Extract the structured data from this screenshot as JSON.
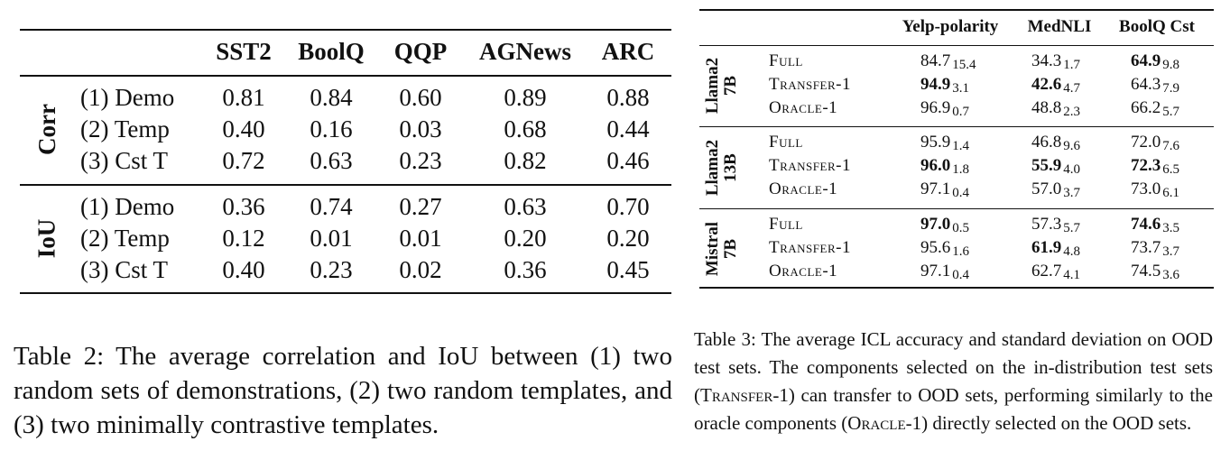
{
  "table2": {
    "headers": [
      "SST2",
      "BoolQ",
      "QQP",
      "AGNews",
      "ARC"
    ],
    "groups": [
      {
        "name": "Corr",
        "rows": [
          {
            "label": "(1) Demo",
            "values": [
              "0.81",
              "0.84",
              "0.60",
              "0.89",
              "0.88"
            ]
          },
          {
            "label": "(2) Temp",
            "values": [
              "0.40",
              "0.16",
              "0.03",
              "0.68",
              "0.44"
            ]
          },
          {
            "label": "(3) Cst T",
            "values": [
              "0.72",
              "0.63",
              "0.23",
              "0.82",
              "0.46"
            ]
          }
        ]
      },
      {
        "name": "IoU",
        "rows": [
          {
            "label": "(1) Demo",
            "values": [
              "0.36",
              "0.74",
              "0.27",
              "0.63",
              "0.70"
            ]
          },
          {
            "label": "(2) Temp",
            "values": [
              "0.12",
              "0.01",
              "0.01",
              "0.20",
              "0.20"
            ]
          },
          {
            "label": "(3) Cst T",
            "values": [
              "0.40",
              "0.23",
              "0.02",
              "0.36",
              "0.45"
            ]
          }
        ]
      }
    ],
    "caption": "Table 2: The average correlation and IoU between (1) two random sets of demonstrations, (2) two random templates, and (3) two minimally contrastive templates."
  },
  "table3": {
    "headers": [
      "Yelp-polarity",
      "MedNLI",
      "BoolQ Cst"
    ],
    "groups": [
      {
        "model": [
          "Llama2",
          "7B"
        ],
        "rows": [
          {
            "method": "Full",
            "cells": [
              {
                "v": "84.7",
                "s": "15.4",
                "bold": false
              },
              {
                "v": "34.3",
                "s": "1.7",
                "bold": false
              },
              {
                "v": "64.9",
                "s": "9.8",
                "bold": true
              }
            ]
          },
          {
            "method": "Transfer-1",
            "cells": [
              {
                "v": "94.9",
                "s": "3.1",
                "bold": true
              },
              {
                "v": "42.6",
                "s": "4.7",
                "bold": true
              },
              {
                "v": "64.3",
                "s": "7.9",
                "bold": false
              }
            ]
          },
          {
            "method": "Oracle-1",
            "cells": [
              {
                "v": "96.9",
                "s": "0.7",
                "bold": false
              },
              {
                "v": "48.8",
                "s": "2.3",
                "bold": false
              },
              {
                "v": "66.2",
                "s": "5.7",
                "bold": false
              }
            ]
          }
        ]
      },
      {
        "model": [
          "Llama2",
          "13B"
        ],
        "rows": [
          {
            "method": "Full",
            "cells": [
              {
                "v": "95.9",
                "s": "1.4",
                "bold": false
              },
              {
                "v": "46.8",
                "s": "9.6",
                "bold": false
              },
              {
                "v": "72.0",
                "s": "7.6",
                "bold": false
              }
            ]
          },
          {
            "method": "Transfer-1",
            "cells": [
              {
                "v": "96.0",
                "s": "1.8",
                "bold": true
              },
              {
                "v": "55.9",
                "s": "4.0",
                "bold": true
              },
              {
                "v": "72.3",
                "s": "6.5",
                "bold": true
              }
            ]
          },
          {
            "method": "Oracle-1",
            "cells": [
              {
                "v": "97.1",
                "s": "0.4",
                "bold": false
              },
              {
                "v": "57.0",
                "s": "3.7",
                "bold": false
              },
              {
                "v": "73.0",
                "s": "6.1",
                "bold": false
              }
            ]
          }
        ]
      },
      {
        "model": [
          "Mistral",
          "7B"
        ],
        "rows": [
          {
            "method": "Full",
            "cells": [
              {
                "v": "97.0",
                "s": "0.5",
                "bold": true
              },
              {
                "v": "57.3",
                "s": "5.7",
                "bold": false
              },
              {
                "v": "74.6",
                "s": "3.5",
                "bold": true
              }
            ]
          },
          {
            "method": "Transfer-1",
            "cells": [
              {
                "v": "95.6",
                "s": "1.6",
                "bold": false
              },
              {
                "v": "61.9",
                "s": "4.8",
                "bold": true
              },
              {
                "v": "73.7",
                "s": "3.7",
                "bold": false
              }
            ]
          },
          {
            "method": "Oracle-1",
            "cells": [
              {
                "v": "97.1",
                "s": "0.4",
                "bold": false
              },
              {
                "v": "62.7",
                "s": "4.1",
                "bold": false
              },
              {
                "v": "74.5",
                "s": "3.6",
                "bold": false
              }
            ]
          }
        ]
      }
    ],
    "caption": {
      "p1": "Table 3: The average ICL accuracy and standard deviation on OOD test sets. The components selected on the in-distribution test sets (",
      "transfer": "Transfer-1",
      "p2": ") can transfer to OOD sets, performing similarly to the oracle components (",
      "oracle": "Oracle-1",
      "p3": ") directly selected on the OOD sets."
    }
  }
}
